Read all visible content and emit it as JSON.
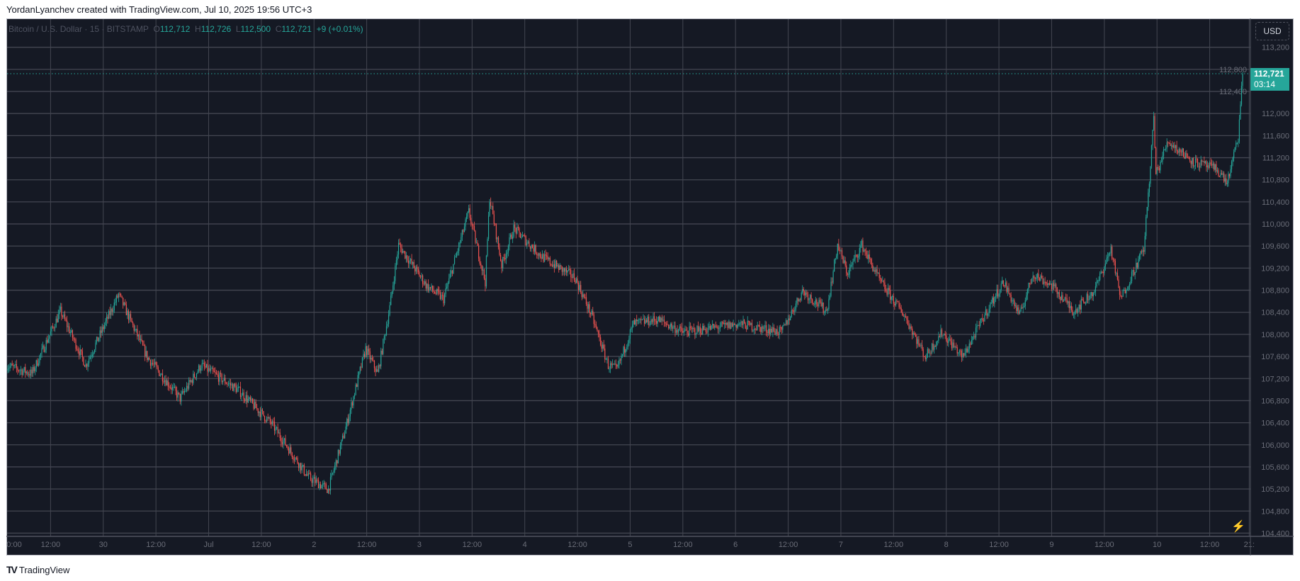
{
  "credit": "YordanLyanchev created with TradingView.com, Jul 10, 2025 19:56 UTC+3",
  "legend": {
    "symbol": "Bitcoin / U.S. Dollar · 15 · BITSTAMP",
    "o_label": "O",
    "o": "112,712",
    "h_label": "H",
    "h": "112,726",
    "l_label": "L",
    "l": "112,500",
    "c_label": "C",
    "c": "112,721",
    "change": "+9 (+0.01%)"
  },
  "currency_button": "USD",
  "price_tag": {
    "price": "112,721",
    "countdown": "03:14"
  },
  "brand": "TradingView",
  "colors": {
    "background": "#151924",
    "grid": "#434651",
    "up": "#26a69a",
    "down": "#ef5350",
    "axis_text": "#6a6d78"
  },
  "chart_data": {
    "type": "candlestick",
    "title": "",
    "interval": "15",
    "ylim": [
      104400,
      113200
    ],
    "yticks": [
      104400,
      104800,
      105200,
      105600,
      106000,
      106400,
      106800,
      107200,
      107600,
      108000,
      108400,
      108800,
      109200,
      109600,
      110000,
      110400,
      110800,
      111200,
      111600,
      112000,
      112400,
      112800,
      113200
    ],
    "ytick_labels": [
      "104,400",
      "104,800",
      "105,200",
      "105,600",
      "106,000",
      "106,400",
      "106,800",
      "107,200",
      "107,600",
      "108,000",
      "108,400",
      "108,800",
      "109,200",
      "109,600",
      "110,000",
      "110,400",
      "110,800",
      "111,200",
      "111,600",
      "112,000",
      "112,400",
      "112,800",
      "113,200"
    ],
    "xlim": [
      "2025-06-29 02:00",
      "2025-07-10 21:30"
    ],
    "xticks": [
      {
        "t": "2025-06-29 00:00",
        "label": "0:00"
      },
      {
        "t": "2025-06-29 12:00",
        "label": "12:00"
      },
      {
        "t": "2025-06-30 00:00",
        "label": "30"
      },
      {
        "t": "2025-06-30 12:00",
        "label": "12:00"
      },
      {
        "t": "2025-07-01 00:00",
        "label": "Jul"
      },
      {
        "t": "2025-07-01 12:00",
        "label": "12:00"
      },
      {
        "t": "2025-07-02 00:00",
        "label": "2"
      },
      {
        "t": "2025-07-02 12:00",
        "label": "12:00"
      },
      {
        "t": "2025-07-03 00:00",
        "label": "3"
      },
      {
        "t": "2025-07-03 12:00",
        "label": "12:00"
      },
      {
        "t": "2025-07-04 00:00",
        "label": "4"
      },
      {
        "t": "2025-07-04 12:00",
        "label": "12:00"
      },
      {
        "t": "2025-07-05 00:00",
        "label": "5"
      },
      {
        "t": "2025-07-05 12:00",
        "label": "12:00"
      },
      {
        "t": "2025-07-06 00:00",
        "label": "6"
      },
      {
        "t": "2025-07-06 12:00",
        "label": "12:00"
      },
      {
        "t": "2025-07-07 00:00",
        "label": "7"
      },
      {
        "t": "2025-07-07 12:00",
        "label": "12:00"
      },
      {
        "t": "2025-07-08 00:00",
        "label": "8"
      },
      {
        "t": "2025-07-08 12:00",
        "label": "12:00"
      },
      {
        "t": "2025-07-09 00:00",
        "label": "9"
      },
      {
        "t": "2025-07-09 12:00",
        "label": "12:00"
      },
      {
        "t": "2025-07-10 00:00",
        "label": "10"
      },
      {
        "t": "2025-07-10 12:00",
        "label": "12:00"
      },
      {
        "t": "2025-07-10 21:00",
        "label": "21:"
      }
    ],
    "last_price": 112721,
    "price_path": [
      [
        "2025-06-29 02:00",
        107440
      ],
      [
        "2025-06-29 08:00",
        107290
      ],
      [
        "2025-06-29 14:30",
        108420
      ],
      [
        "2025-06-29 20:15",
        107440
      ],
      [
        "2025-06-30 03:45",
        108720
      ],
      [
        "2025-06-30 10:15",
        107590
      ],
      [
        "2025-06-30 17:45",
        106840
      ],
      [
        "2025-06-30 22:30",
        107440
      ],
      [
        "2025-07-01 07:00",
        106990
      ],
      [
        "2025-07-01 14:30",
        106390
      ],
      [
        "2025-07-01 23:00",
        105410
      ],
      [
        "2025-07-02 03:30",
        105190
      ],
      [
        "2025-07-02 07:15",
        106240
      ],
      [
        "2025-07-02 12:00",
        107740
      ],
      [
        "2025-07-02 14:45",
        107290
      ],
      [
        "2025-07-02 17:30",
        108490
      ],
      [
        "2025-07-02 19:30",
        109620
      ],
      [
        "2025-07-03 02:00",
        108870
      ],
      [
        "2025-07-03 05:45",
        108640
      ],
      [
        "2025-07-03 11:30",
        110220
      ],
      [
        "2025-07-03 15:15",
        108950
      ],
      [
        "2025-07-03 16:15",
        110480
      ],
      [
        "2025-07-03 19:00",
        109250
      ],
      [
        "2025-07-03 21:45",
        109920
      ],
      [
        "2025-07-04 04:15",
        109400
      ],
      [
        "2025-07-04 11:45",
        109020
      ],
      [
        "2025-07-04 15:30",
        108340
      ],
      [
        "2025-07-04 19:15",
        107440
      ],
      [
        "2025-07-04 21:15",
        107360
      ],
      [
        "2025-07-05 01:00",
        108190
      ],
      [
        "2025-07-05 06:30",
        108270
      ],
      [
        "2025-07-05 12:15",
        108040
      ],
      [
        "2025-07-06 01:15",
        108190
      ],
      [
        "2025-07-06 10:45",
        108040
      ],
      [
        "2025-07-06 15:30",
        108790
      ],
      [
        "2025-07-06 21:00",
        108420
      ],
      [
        "2025-07-06 23:30",
        109620
      ],
      [
        "2025-07-07 01:45",
        109100
      ],
      [
        "2025-07-07 05:00",
        109620
      ],
      [
        "2025-07-07 09:15",
        108950
      ],
      [
        "2025-07-07 14:45",
        108340
      ],
      [
        "2025-07-07 19:30",
        107590
      ],
      [
        "2025-07-07 23:15",
        108040
      ],
      [
        "2025-07-08 04:00",
        107590
      ],
      [
        "2025-07-08 09:30",
        108420
      ],
      [
        "2025-07-08 13:15",
        108950
      ],
      [
        "2025-07-08 17:00",
        108340
      ],
      [
        "2025-07-08 20:00",
        109100
      ],
      [
        "2025-07-09 00:30",
        108870
      ],
      [
        "2025-07-09 05:15",
        108420
      ],
      [
        "2025-07-09 10:00",
        108790
      ],
      [
        "2025-07-09 13:45",
        109550
      ],
      [
        "2025-07-09 16:00",
        108640
      ],
      [
        "2025-07-09 21:15",
        109550
      ],
      [
        "2025-07-09 22:45",
        111050
      ],
      [
        "2025-07-09 23:30",
        111950
      ],
      [
        "2025-07-10 00:00",
        110890
      ],
      [
        "2025-07-10 02:45",
        111500
      ],
      [
        "2025-07-10 08:30",
        111130
      ],
      [
        "2025-07-10 14:00",
        110980
      ],
      [
        "2025-07-10 16:15",
        110750
      ],
      [
        "2025-07-10 18:45",
        111570
      ],
      [
        "2025-07-10 19:45",
        112721
      ]
    ]
  }
}
